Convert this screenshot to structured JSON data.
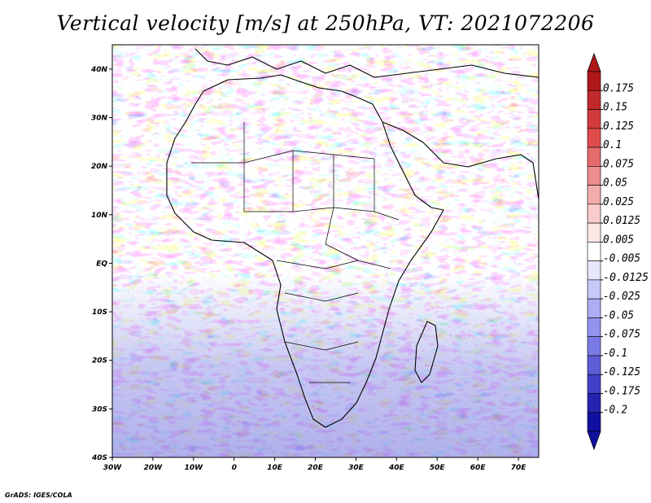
{
  "title": "Vertical velocity [m/s] at 250hPa, VT: 2021072206",
  "credit": "GrADS: IGES/COLA",
  "map": {
    "lon_ticks": [
      "30W",
      "20W",
      "10W",
      "0",
      "10E",
      "20E",
      "30E",
      "40E",
      "50E",
      "60E",
      "70E"
    ],
    "lat_ticks": [
      "40N",
      "30N",
      "20N",
      "10N",
      "EQ",
      "10S",
      "20S",
      "30S",
      "40S"
    ],
    "lon_range": [
      -30,
      75
    ],
    "lat_range": [
      -40,
      45
    ]
  },
  "colorbar": {
    "labels": [
      "0.175",
      "0.15",
      "0.125",
      "0.1",
      "0.075",
      "0.05",
      "0.025",
      "0.0125",
      "0.005",
      "-0.005",
      "-0.0125",
      "-0.025",
      "-0.05",
      "-0.075",
      "-0.1",
      "-0.125",
      "-0.175",
      "-0.2"
    ],
    "colors": [
      "#b01818",
      "#c02a2a",
      "#d23b3b",
      "#e04c4c",
      "#e56a6a",
      "#ec8c8c",
      "#f2acac",
      "#f8cccc",
      "#fde6e6",
      "#ffffff",
      "#e6e6fd",
      "#c9c9f9",
      "#adadf3",
      "#9393ee",
      "#7a7ae6",
      "#5d5dd8",
      "#4040c8",
      "#2424b0",
      "#1010a0"
    ],
    "arrow_top_color": "#b01818",
    "arrow_bottom_color": "#1010a0"
  }
}
